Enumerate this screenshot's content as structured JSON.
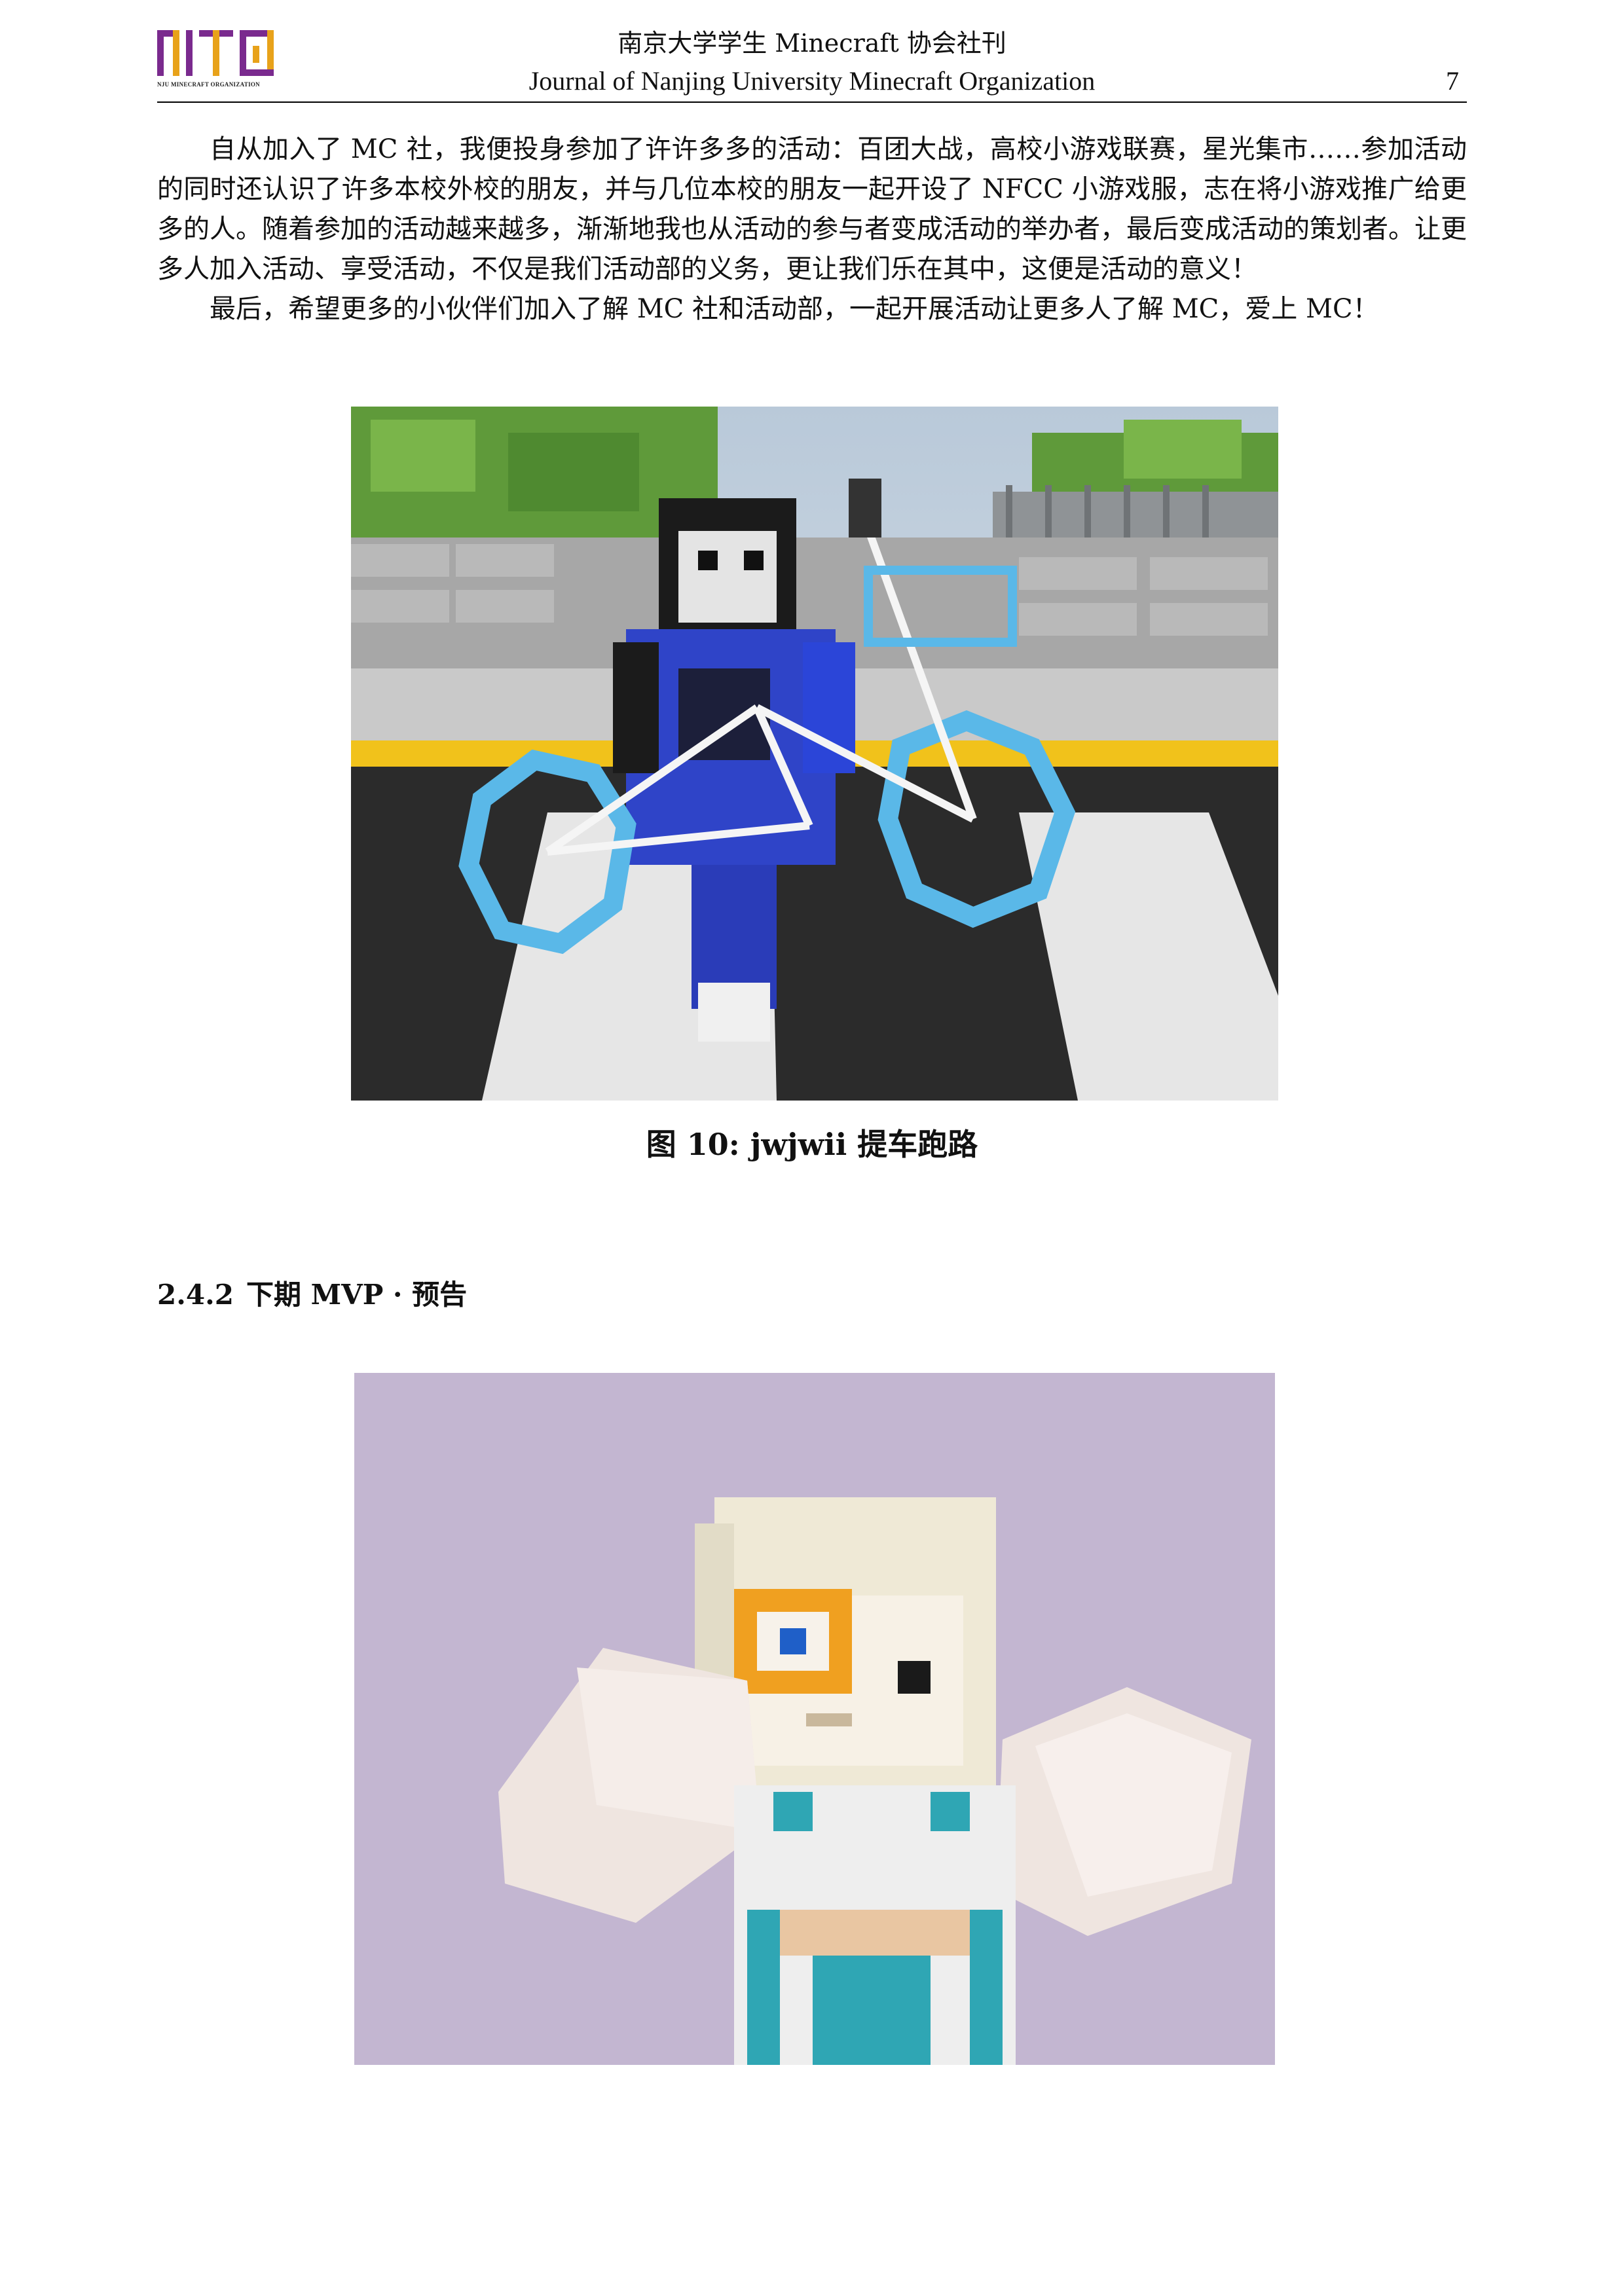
{
  "header": {
    "logo_text": "NJU MINECRAFT ORGANIZATION",
    "title_cn": "南京大学学生 Minecraft 协会社刊",
    "title_en": "Journal of Nanjing University Minecraft Organization",
    "page_number": "7"
  },
  "body": {
    "paragraphs": [
      "自从加入了 MC 社，我便投身参加了许许多多的活动：百团大战，高校小游戏联赛，星光集市……参加活动的同时还认识了许多本校外校的朋友，并与几位本校的朋友一起开设了 NFCC 小游戏服，志在将小游戏推广给更多的人。随着参加的活动越来越多，渐渐地我也从活动的参与者变成活动的举办者，最后变成活动的策划者。让更多人加入活动、享受活动，不仅是我们活动部的义务，更让我们乐在其中，这便是活动的意义！",
      "最后，希望更多的小伙伴们加入了解 MC 社和活动部，一起开展活动让更多人了解 MC，爱上 MC！"
    ]
  },
  "figure1": {
    "caption": "图 10: jwjwii 提车跑路",
    "colors": {
      "sky": "#c9d8e8",
      "leaves": "#5f9a3a",
      "road": "#2b2b2b",
      "curb": "#f1c21b",
      "shirt": "#2f44c8",
      "wheel": "#5ab8e8"
    }
  },
  "section": {
    "number": "2.4.2",
    "title": "下期 MVP · 预告"
  },
  "figure2": {
    "colors": {
      "background": "#c3b6d1",
      "hair": "#efe9d6",
      "accent": "#2fa6b4",
      "hairpin": "#f0a020"
    }
  }
}
